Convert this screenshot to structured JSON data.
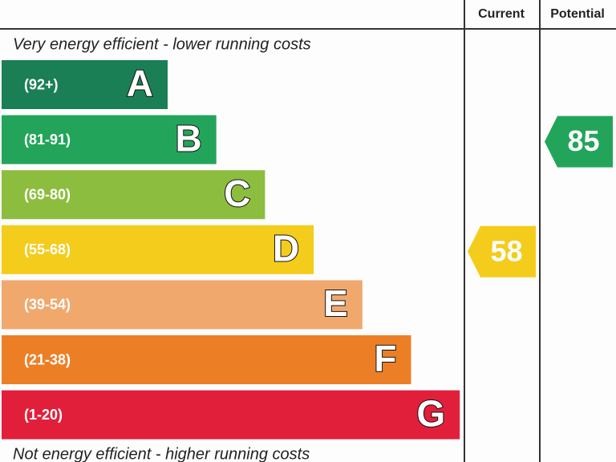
{
  "chart_data": {
    "type": "epc",
    "columns": [
      "Current",
      "Potential"
    ],
    "top_text": "Very energy efficient - lower running costs",
    "bottom_text": "Not energy efficient - higher running costs",
    "bands": [
      {
        "range": "(92+)",
        "letter": "A",
        "color": "#1a7f55"
      },
      {
        "range": "(81-91)",
        "letter": "B",
        "color": "#22a55a"
      },
      {
        "range": "(69-80)",
        "letter": "C",
        "color": "#8cbd3f"
      },
      {
        "range": "(55-68)",
        "letter": "D",
        "color": "#f4cc1b"
      },
      {
        "range": "(39-54)",
        "letter": "E",
        "color": "#f1a86d"
      },
      {
        "range": "(21-38)",
        "letter": "F",
        "color": "#ec7f26"
      },
      {
        "range": "(1-20)",
        "letter": "G",
        "color": "#e21f3b"
      }
    ],
    "current": 58,
    "potential": 85
  }
}
